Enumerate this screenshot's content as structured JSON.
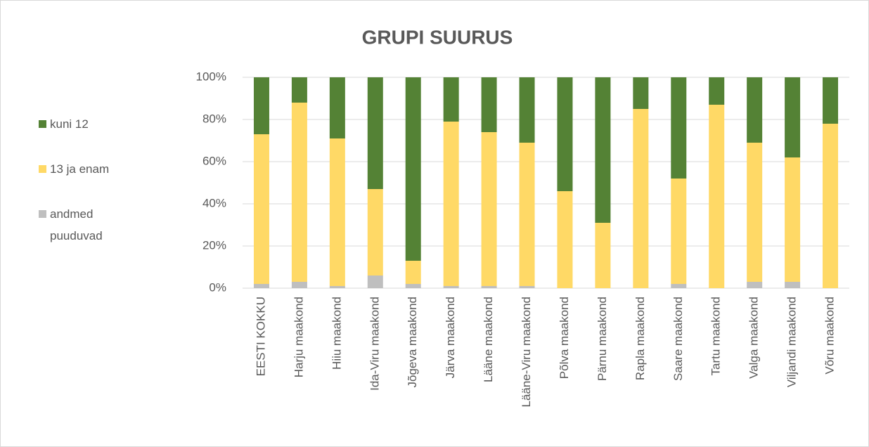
{
  "chart_data": {
    "type": "bar",
    "stacked": true,
    "title": "GRUPI SUURUS",
    "categories": [
      "EESTI KOKKU",
      "Harju maakond",
      "Hiiu maakond",
      "Ida-Viru maakond",
      "Jõgeva maakond",
      "Järva maakond",
      "Lääne maakond",
      "Lääne-Viru maakond",
      "Põlva maakond",
      "Pärnu maakond",
      "Rapla maakond",
      "Saare maakond",
      "Tartu maakond",
      "Valga maakond",
      "Viljandi maakond",
      "Võru maakond"
    ],
    "series": [
      {
        "name": "kuni 12",
        "color": "#548235",
        "values": [
          27,
          12,
          29,
          53,
          87,
          21,
          26,
          31,
          54,
          69,
          15,
          48,
          13,
          31,
          38,
          22
        ]
      },
      {
        "name": "13 ja enam",
        "color": "#ffd966",
        "values": [
          71,
          85,
          70,
          41,
          11,
          78,
          73,
          68,
          46,
          31,
          85,
          50,
          87,
          66,
          59,
          78
        ]
      },
      {
        "name": "andmed puuduvad",
        "color": "#bfbfbf",
        "values": [
          2,
          3,
          1,
          6,
          2,
          1,
          1,
          1,
          0,
          0,
          0,
          2,
          0,
          3,
          3,
          0
        ]
      }
    ],
    "ylim": [
      0,
      100
    ],
    "yticks": [
      {
        "value": 0,
        "label": "0%"
      },
      {
        "value": 20,
        "label": "20%"
      },
      {
        "value": 40,
        "label": "40%"
      },
      {
        "value": 60,
        "label": "60%"
      },
      {
        "value": 80,
        "label": "80%"
      },
      {
        "value": 100,
        "label": "100%"
      }
    ],
    "grid": true,
    "legend": "left"
  }
}
